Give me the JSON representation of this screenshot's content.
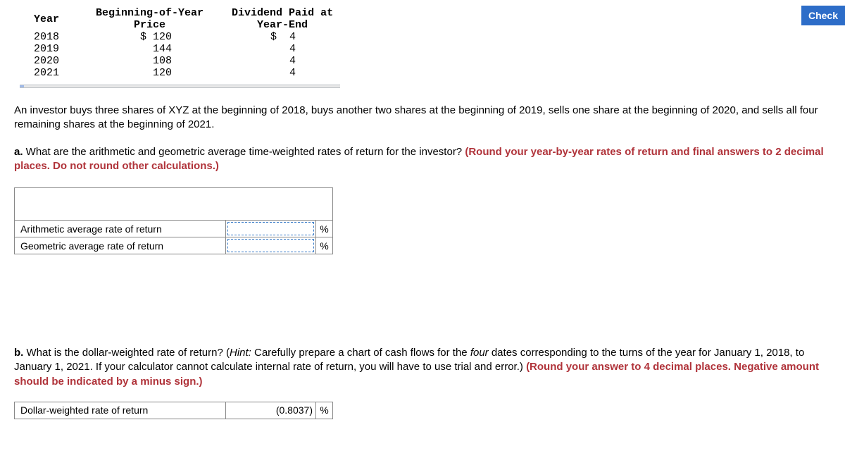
{
  "check_button_label": "Check",
  "data_table": {
    "headers": {
      "year": "Year",
      "price": "Beginning-of-Year\nPrice",
      "dividend": "Dividend Paid at\nYear-End"
    },
    "rows": [
      {
        "year": "2018",
        "price": "$ 120",
        "dividend": "$  4"
      },
      {
        "year": "2019",
        "price": "  144",
        "dividend": "   4"
      },
      {
        "year": "2020",
        "price": "  108",
        "dividend": "   4"
      },
      {
        "year": "2021",
        "price": "  120",
        "dividend": "   4"
      }
    ]
  },
  "intro_text": "An investor buys three shares of XYZ at the beginning of 2018, buys another two shares at the beginning of 2019, sells one share at the beginning of 2020, and sells all four remaining shares at the beginning of 2021.",
  "question_a": {
    "prefix": "a.",
    "text": " What are the arithmetic and geometric average time-weighted rates of return for the investor? ",
    "hint": "(Round your year-by-year rates of return and final answers to 2 decimal places. Do not round other calculations.)"
  },
  "answers_a": {
    "row1_label": "Arithmetic average rate of return",
    "row1_value": "",
    "row1_unit": "%",
    "row2_label": "Geometric average rate of return",
    "row2_value": "",
    "row2_unit": "%"
  },
  "question_b": {
    "prefix": "b.",
    "text_1": " What is the dollar-weighted rate of return? (",
    "hint_label": "Hint:",
    "text_2": " Carefully prepare a chart of cash flows for the ",
    "four_word": "four",
    "text_3": " dates corresponding to the turns of the year for January 1, 2018, to January 1, 2021. If your calculator cannot calculate internal rate of return, you will have to use trial and error.) ",
    "hint": "(Round your answer to 4 decimal places. Negative amount should be indicated by a minus sign.)"
  },
  "answers_b": {
    "row1_label": "Dollar-weighted rate of return",
    "row1_value": "(0.8037)",
    "row1_unit": "%"
  },
  "colors": {
    "check_bg": "#2d6dc8",
    "red_text": "#b0333a",
    "border": "#888888",
    "dashed_input": "#3b7dc9"
  }
}
